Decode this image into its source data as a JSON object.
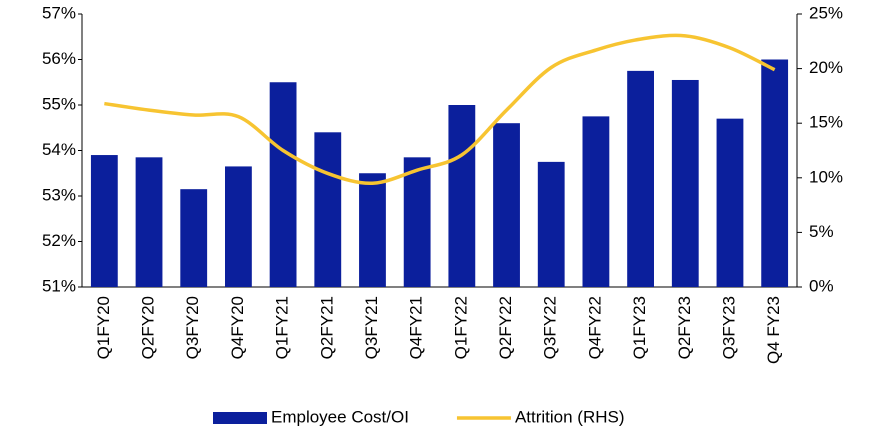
{
  "chart_data": {
    "type": "bar-line",
    "categories": [
      "Q1FY20",
      "Q2FY20",
      "Q3FY20",
      "Q4FY20",
      "Q1FY21",
      "Q2FY21",
      "Q3FY21",
      "Q4FY21",
      "Q1FY22",
      "Q2FY22",
      "Q3FY22",
      "Q4FY22",
      "Q1FY23",
      "Q2FY23",
      "Q3FY23",
      "Q4 FY23"
    ],
    "series": [
      {
        "name": "Employee Cost/OI",
        "type": "bar",
        "color": "#0b1f9c",
        "values": [
          53.9,
          53.85,
          53.15,
          53.65,
          55.5,
          54.4,
          53.5,
          53.85,
          55.0,
          54.6,
          53.75,
          54.75,
          55.75,
          55.55,
          54.7,
          56.0
        ]
      },
      {
        "name": "Attrition (RHS)",
        "type": "line",
        "axis": "y2",
        "color": "#f7c431",
        "values": [
          16.8,
          16.2,
          15.75,
          15.6,
          12.5,
          10.4,
          9.5,
          10.7,
          12.1,
          16.2,
          20.1,
          21.7,
          22.7,
          23.0,
          21.9,
          19.9
        ]
      }
    ],
    "ylim": [
      51,
      57
    ],
    "yticks": [
      {
        "value": 51,
        "label": "51%"
      },
      {
        "value": 52,
        "label": "52%"
      },
      {
        "value": 53,
        "label": "53%"
      },
      {
        "value": 54,
        "label": "54%"
      },
      {
        "value": 55,
        "label": "55%"
      },
      {
        "value": 56,
        "label": "56%"
      },
      {
        "value": 57,
        "label": "57%"
      }
    ],
    "y2lim": [
      0,
      25
    ],
    "y2ticks": [
      {
        "value": 0,
        "label": "0%"
      },
      {
        "value": 5,
        "label": "5%"
      },
      {
        "value": 10,
        "label": "10%"
      },
      {
        "value": 15,
        "label": "15%"
      },
      {
        "value": 20,
        "label": "20%"
      },
      {
        "value": 25,
        "label": "25%"
      }
    ],
    "grid": false,
    "legend": "bottom"
  }
}
